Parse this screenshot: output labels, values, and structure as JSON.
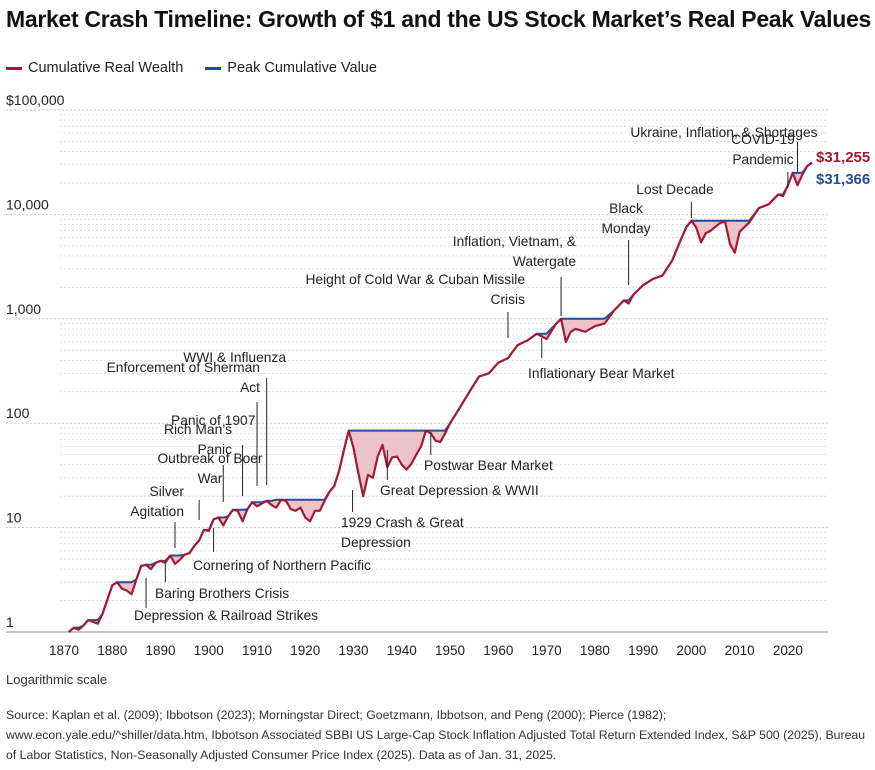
{
  "title": "Market Crash Timeline: Growth of $1 and the US Stock Market’s Real Peak Values",
  "legend": [
    {
      "label": "Cumulative Real Wealth",
      "color": "#a31a35"
    },
    {
      "label": "Peak Cumulative Value",
      "color": "#1f4e9c"
    }
  ],
  "scale_note": "Logarithmic scale",
  "source": "Source: Kaplan et al. (2009); Ibbotson (2023); Morningstar Direct; Goetzmann, Ibbotson, and Peng (2000); Pierce (1982); www.econ.yale.edu/^shiller/data.htm, Ibbotson Associated SBBI US Large-Cap Stock Inflation Adjusted Total Return Extended Index, S&P 500 (2025), Bureau of Labor Statistics, Non-Seasonally Adjusted Consumer Price Index (2025). Data as of Jan. 31, 2025.",
  "chart_data": {
    "type": "area",
    "title": "Market Crash Timeline: Growth of $1 and the US Stock Market’s Real Peak Values",
    "x_axis": {
      "ticks": [
        1870,
        1880,
        1890,
        1900,
        1910,
        1920,
        1930,
        1940,
        1950,
        1960,
        1970,
        1980,
        1990,
        2000,
        2010,
        2020
      ],
      "range": [
        1870,
        2025
      ]
    },
    "y_axis": {
      "scale": "log",
      "range": [
        1,
        100000
      ],
      "ticks": [
        {
          "value": 1,
          "label": "1"
        },
        {
          "value": 10,
          "label": "10"
        },
        {
          "value": 100,
          "label": "100"
        },
        {
          "value": 1000,
          "label": "1,000"
        },
        {
          "value": 10000,
          "label": "10,000"
        },
        {
          "value": 100000,
          "label": "$100,000"
        }
      ],
      "minor_gridlines": true
    },
    "series": [
      {
        "name": "Cumulative Real Wealth",
        "color": "#a31a35",
        "x": [
          1871,
          1872,
          1873,
          1874,
          1875,
          1876,
          1877,
          1878,
          1880,
          1881,
          1882,
          1883,
          1884,
          1885,
          1886,
          1887,
          1888,
          1889,
          1890,
          1891,
          1892,
          1893,
          1894,
          1895,
          1896,
          1897,
          1898,
          1899,
          1900,
          1901,
          1902,
          1903,
          1904,
          1905,
          1906,
          1907,
          1908,
          1909,
          1910,
          1911,
          1912,
          1913,
          1914,
          1915,
          1916,
          1917,
          1918,
          1919,
          1920,
          1921,
          1922,
          1923,
          1924,
          1925,
          1926,
          1927,
          1928,
          1929,
          1930,
          1931,
          1932,
          1933,
          1934,
          1935,
          1936,
          1937,
          1938,
          1939,
          1940,
          1941,
          1942,
          1943,
          1944,
          1945,
          1946,
          1947,
          1948,
          1949,
          1950,
          1952,
          1954,
          1956,
          1958,
          1960,
          1962,
          1964,
          1966,
          1968,
          1970,
          1972,
          1973,
          1974,
          1975,
          1976,
          1978,
          1980,
          1982,
          1984,
          1986,
          1987,
          1988,
          1990,
          1992,
          1994,
          1996,
          1998,
          1999,
          2000,
          2001,
          2002,
          2003,
          2004,
          2006,
          2007,
          2008,
          2009,
          2010,
          2012,
          2014,
          2016,
          2018,
          2019,
          2020,
          2021,
          2022,
          2023,
          2024,
          2025
        ],
        "values": [
          1.0,
          1.1,
          1.05,
          1.15,
          1.3,
          1.25,
          1.2,
          1.5,
          2.8,
          3.0,
          2.6,
          2.5,
          2.3,
          3.2,
          4.3,
          4.4,
          4.0,
          4.6,
          4.8,
          4.6,
          5.4,
          4.5,
          4.9,
          5.5,
          5.7,
          6.7,
          7.5,
          9.5,
          9.3,
          12.0,
          12.5,
          10.5,
          12.8,
          14.8,
          14.5,
          11.5,
          15.0,
          17.5,
          16.0,
          17.0,
          18.0,
          16.5,
          15.5,
          18.5,
          18.0,
          15.0,
          14.5,
          15.5,
          12.5,
          11.5,
          14.5,
          14.5,
          18.0,
          22.0,
          25.0,
          35.0,
          55.0,
          85.0,
          58.0,
          33.0,
          20.0,
          32.0,
          30.0,
          48.0,
          62.0,
          38.0,
          47.0,
          48.0,
          40.0,
          36.0,
          41.0,
          50.0,
          60.0,
          85.0,
          80.0,
          68.0,
          66.0,
          80.0,
          100.0,
          140.0,
          200.0,
          280.0,
          300.0,
          380.0,
          420.0,
          560.0,
          620.0,
          720.0,
          640.0,
          900.0,
          1000.0,
          600.0,
          750.0,
          800.0,
          750.0,
          850.0,
          900.0,
          1200.0,
          1500.0,
          1400.0,
          1700.0,
          2100.0,
          2400.0,
          2600.0,
          3600.0,
          6000.0,
          7600.0,
          8700.0,
          7500.0,
          5400.0,
          6600.0,
          7000.0,
          8300.0,
          8500.0,
          5200.0,
          4300.0,
          6800.0,
          8400.0,
          11500.0,
          12500.0,
          15500.0,
          15000.0,
          19000.0,
          25000.0,
          19000.0,
          24000.0,
          29000.0,
          31255.0
        ]
      },
      {
        "name": "Peak Cumulative Value",
        "color": "#1f4e9c",
        "x": [
          1871,
          1872,
          1873,
          1874,
          1875,
          1876,
          1877,
          1878,
          1880,
          1881,
          1882,
          1883,
          1884,
          1885,
          1886,
          1887,
          1888,
          1889,
          1890,
          1891,
          1892,
          1893,
          1894,
          1895,
          1896,
          1897,
          1898,
          1899,
          1900,
          1901,
          1902,
          1903,
          1904,
          1905,
          1906,
          1907,
          1908,
          1909,
          1910,
          1911,
          1912,
          1913,
          1914,
          1915,
          1916,
          1917,
          1918,
          1919,
          1920,
          1921,
          1922,
          1923,
          1924,
          1925,
          1926,
          1927,
          1928,
          1929,
          1930,
          1931,
          1932,
          1933,
          1934,
          1935,
          1936,
          1937,
          1938,
          1939,
          1940,
          1941,
          1942,
          1943,
          1944,
          1945,
          1946,
          1947,
          1948,
          1949,
          1950,
          1952,
          1954,
          1956,
          1958,
          1960,
          1962,
          1964,
          1966,
          1968,
          1970,
          1972,
          1973,
          1974,
          1975,
          1976,
          1978,
          1980,
          1982,
          1984,
          1986,
          1987,
          1988,
          1990,
          1992,
          1994,
          1996,
          1998,
          1999,
          2000,
          2001,
          2002,
          2003,
          2004,
          2006,
          2007,
          2008,
          2009,
          2010,
          2012,
          2014,
          2016,
          2018,
          2019,
          2020,
          2021,
          2022,
          2023,
          2024,
          2025
        ],
        "values": [
          1.0,
          1.1,
          1.1,
          1.15,
          1.3,
          1.3,
          1.3,
          1.5,
          2.8,
          3.0,
          3.0,
          3.0,
          3.0,
          3.2,
          4.3,
          4.4,
          4.4,
          4.6,
          4.8,
          4.8,
          5.4,
          5.4,
          5.4,
          5.5,
          5.7,
          6.7,
          7.5,
          9.5,
          9.5,
          12.0,
          12.5,
          12.5,
          12.8,
          14.8,
          14.8,
          14.8,
          15.0,
          17.5,
          17.5,
          17.5,
          18.0,
          18.0,
          18.5,
          18.5,
          18.5,
          18.5,
          18.5,
          18.5,
          18.5,
          18.5,
          18.5,
          18.5,
          18.5,
          22.0,
          25.0,
          35.0,
          55.0,
          85.0,
          85.0,
          85.0,
          85.0,
          85.0,
          85.0,
          85.0,
          85.0,
          85.0,
          85.0,
          85.0,
          85.0,
          85.0,
          85.0,
          85.0,
          85.0,
          85.0,
          85.0,
          85.0,
          85.0,
          85.0,
          100.0,
          140.0,
          200.0,
          280.0,
          300.0,
          380.0,
          420.0,
          560.0,
          620.0,
          720.0,
          720.0,
          900.0,
          1000.0,
          1000.0,
          1000.0,
          1000.0,
          1000.0,
          1000.0,
          1000.0,
          1200.0,
          1500.0,
          1500.0,
          1700.0,
          2100.0,
          2400.0,
          2600.0,
          3600.0,
          6000.0,
          7600.0,
          8700.0,
          8700.0,
          8700.0,
          8700.0,
          8700.0,
          8700.0,
          8700.0,
          8700.0,
          8700.0,
          8700.0,
          8700.0,
          11500.0,
          12500.0,
          15500.0,
          15500.0,
          19000.0,
          25000.0,
          25000.0,
          25000.0,
          29000.0,
          31366.0
        ]
      }
    ],
    "end_labels": [
      {
        "series": "Cumulative Real Wealth",
        "label": "$31,255",
        "color": "#a31a35"
      },
      {
        "series": "Peak Cumulative Value",
        "label": "$31,366",
        "color": "#1f4e9c"
      }
    ],
    "annotations": [
      {
        "lines": [
          "Depression & Railroad Strikes"
        ],
        "year": 1887
      },
      {
        "lines": [
          "Baring Brothers Crisis"
        ],
        "year": 1891
      },
      {
        "lines": [
          "Silver",
          "Agitation"
        ],
        "year": 1893
      },
      {
        "lines": [
          "Outbreak of Boer",
          "War"
        ],
        "year": 1898
      },
      {
        "lines": [
          "Cornering of Northern Pacific"
        ],
        "year": 1901
      },
      {
        "lines": [
          "Rich Man’s",
          "Panic"
        ],
        "year": 1903
      },
      {
        "lines": [
          "Panic of 1907"
        ],
        "year": 1907
      },
      {
        "lines": [
          "Enforcement of Sherman",
          "Act"
        ],
        "year": 1910
      },
      {
        "lines": [
          "WWI & Influenza"
        ],
        "year": 1912
      },
      {
        "lines": [
          "1929 Crash & Great",
          "Depression"
        ],
        "year": 1929
      },
      {
        "lines": [
          "Great Depression & WWII"
        ],
        "year": 1937
      },
      {
        "lines": [
          "Postwar Bear Market"
        ],
        "year": 1946
      },
      {
        "lines": [
          "Height of Cold War & Cuban Missile",
          "Crisis"
        ],
        "year": 1962
      },
      {
        "lines": [
          "Inflationary Bear Market"
        ],
        "year": 1969
      },
      {
        "lines": [
          "Inflation, Vietnam, &",
          "Watergate"
        ],
        "year": 1973
      },
      {
        "lines": [
          "Black",
          "Monday"
        ],
        "year": 1987
      },
      {
        "lines": [
          "Lost Decade"
        ],
        "year": 2000
      },
      {
        "lines": [
          "COVID-19",
          "Pandemic"
        ],
        "year": 2020
      },
      {
        "lines": [
          "Ukraine, Inflation, & Shortages"
        ],
        "year": 2022
      }
    ]
  }
}
